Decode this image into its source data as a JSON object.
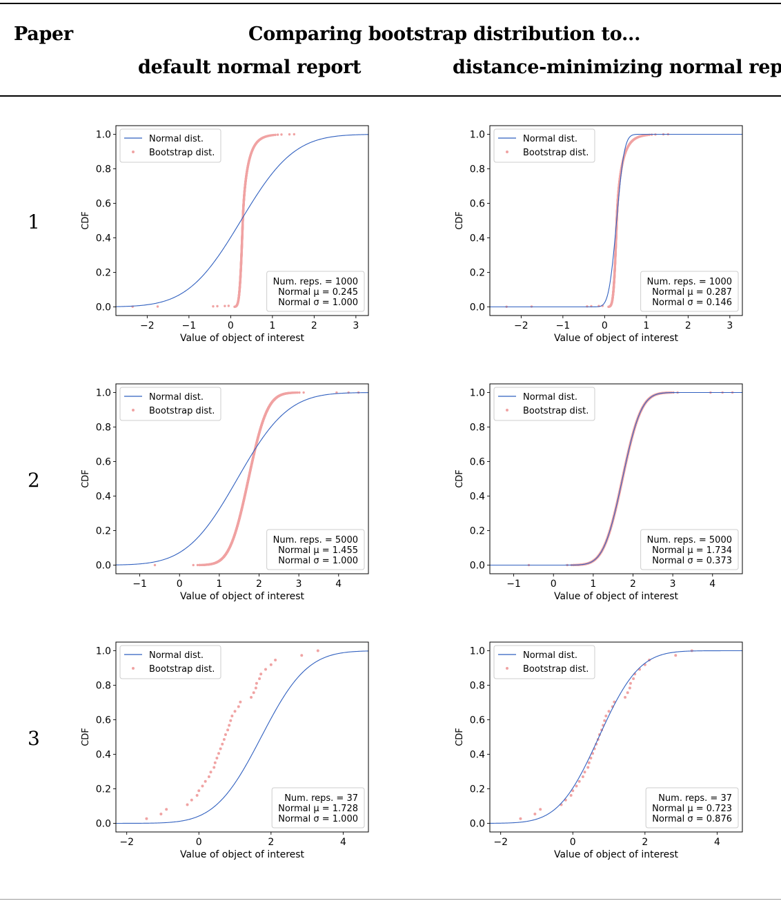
{
  "table": {
    "col_paper": "Paper",
    "col_compare": "Comparing bootstrap distribution to...",
    "col_default": "default normal report",
    "col_distmin": "distance-minimizing normal report",
    "rows": [
      "1",
      "2",
      "3"
    ]
  },
  "colors": {
    "normal": "#2f5fbf",
    "bootstrap": "#f0a3a3"
  },
  "chart_data": [
    {
      "id": "p1-default",
      "type": "line",
      "xlabel": "Value of object of interest",
      "ylabel": "CDF",
      "xlim": [
        -2.75,
        3.3
      ],
      "ylim": [
        -0.05,
        1.05
      ],
      "xticks": [
        -2,
        -1,
        0,
        1,
        2,
        3
      ],
      "yticks": [
        0.0,
        0.2,
        0.4,
        0.6,
        0.8,
        1.0
      ],
      "legend": [
        "Normal dist.",
        "Bootstrap dist."
      ],
      "legend_position": "upper-left",
      "stats": [
        "Num. reps. = 1000",
        "Normal μ = 0.245",
        "Normal σ = 1.000"
      ],
      "normal": {
        "mu": 0.245,
        "sigma": 1.0
      },
      "bootstrap": {
        "n": 1000,
        "center": 0.29,
        "spread": 0.06,
        "tail": "right",
        "tail_scale": 0.17,
        "outliers": [
          [
            -2.35,
            0.001
          ],
          [
            -1.75,
            0.002
          ],
          [
            -0.42,
            0.003
          ],
          [
            -0.32,
            0.004
          ],
          [
            -0.14,
            0.005
          ],
          [
            -0.05,
            0.006
          ],
          [
            1.52,
            1.0
          ]
        ]
      }
    },
    {
      "id": "p1-distmin",
      "type": "line",
      "xlabel": "Value of object of interest",
      "ylabel": "CDF",
      "xlim": [
        -2.75,
        3.3
      ],
      "ylim": [
        -0.05,
        1.05
      ],
      "xticks": [
        -2,
        -1,
        0,
        1,
        2,
        3
      ],
      "yticks": [
        0.0,
        0.2,
        0.4,
        0.6,
        0.8,
        1.0
      ],
      "legend": [
        "Normal dist.",
        "Bootstrap dist."
      ],
      "legend_position": "upper-left",
      "stats": [
        "Num. reps. = 1000",
        "Normal μ = 0.287",
        "Normal σ = 0.146"
      ],
      "normal": {
        "mu": 0.287,
        "sigma": 0.146
      },
      "bootstrap": {
        "n": 1000,
        "center": 0.29,
        "spread": 0.06,
        "tail": "right",
        "tail_scale": 0.17,
        "outliers": [
          [
            -2.35,
            0.001
          ],
          [
            -1.75,
            0.002
          ],
          [
            -0.42,
            0.003
          ],
          [
            -0.32,
            0.004
          ],
          [
            -0.14,
            0.005
          ],
          [
            -0.05,
            0.006
          ],
          [
            1.52,
            1.0
          ]
        ]
      }
    },
    {
      "id": "p2-default",
      "type": "line",
      "xlabel": "Value of object of interest",
      "ylabel": "CDF",
      "xlim": [
        -1.6,
        4.75
      ],
      "ylim": [
        -0.05,
        1.05
      ],
      "xticks": [
        -1,
        0,
        1,
        2,
        3,
        4
      ],
      "yticks": [
        0.0,
        0.2,
        0.4,
        0.6,
        0.8,
        1.0
      ],
      "legend": [
        "Normal dist.",
        "Bootstrap dist."
      ],
      "legend_position": "upper-left",
      "stats": [
        "Num. reps. = 5000",
        "Normal μ = 1.455",
        "Normal σ = 1.000"
      ],
      "normal": {
        "mu": 1.455,
        "sigma": 1.0
      },
      "bootstrap": {
        "n": 5000,
        "center": 1.734,
        "spread": 0.373,
        "tail": "none",
        "tail_scale": 0,
        "outliers": [
          [
            -0.62,
            0.0002
          ],
          [
            0.5,
            0.0004
          ],
          [
            0.62,
            0.0006
          ],
          [
            3.95,
            0.9995
          ],
          [
            4.25,
            0.9998
          ],
          [
            4.5,
            1.0
          ]
        ]
      }
    },
    {
      "id": "p2-distmin",
      "type": "line",
      "xlabel": "Value of object of interest",
      "ylabel": "CDF",
      "xlim": [
        -1.6,
        4.75
      ],
      "ylim": [
        -0.05,
        1.05
      ],
      "xticks": [
        -1,
        0,
        1,
        2,
        3,
        4
      ],
      "yticks": [
        0.0,
        0.2,
        0.4,
        0.6,
        0.8,
        1.0
      ],
      "legend": [
        "Normal dist.",
        "Bootstrap dist."
      ],
      "legend_position": "upper-left",
      "stats": [
        "Num. reps. = 5000",
        "Normal μ = 1.734",
        "Normal σ = 0.373"
      ],
      "normal": {
        "mu": 1.734,
        "sigma": 0.373
      },
      "bootstrap": {
        "n": 5000,
        "center": 1.734,
        "spread": 0.373,
        "tail": "none",
        "tail_scale": 0,
        "outliers": [
          [
            -0.62,
            0.0002
          ],
          [
            0.5,
            0.0004
          ],
          [
            0.62,
            0.0006
          ],
          [
            3.95,
            0.9995
          ],
          [
            4.25,
            0.9998
          ],
          [
            4.5,
            1.0
          ]
        ]
      }
    },
    {
      "id": "p3-default",
      "type": "line",
      "xlabel": "Value of object of interest",
      "ylabel": "CDF",
      "xlim": [
        -2.3,
        4.7
      ],
      "ylim": [
        -0.05,
        1.05
      ],
      "xticks": [
        -2,
        0,
        2,
        4
      ],
      "yticks": [
        0.0,
        0.2,
        0.4,
        0.6,
        0.8,
        1.0
      ],
      "legend": [
        "Normal dist.",
        "Bootstrap dist."
      ],
      "legend_position": "upper-left",
      "stats": [
        "Num. reps. = 37",
        "Normal μ = 1.728",
        "Normal σ = 1.000"
      ],
      "normal": {
        "mu": 1.728,
        "sigma": 1.0
      },
      "bootstrap_points": [
        [
          -1.45,
          0.027
        ],
        [
          -1.05,
          0.054
        ],
        [
          -0.9,
          0.081
        ],
        [
          -0.32,
          0.108
        ],
        [
          -0.2,
          0.135
        ],
        [
          -0.05,
          0.162
        ],
        [
          0.0,
          0.189
        ],
        [
          0.1,
          0.216
        ],
        [
          0.18,
          0.243
        ],
        [
          0.28,
          0.27
        ],
        [
          0.33,
          0.297
        ],
        [
          0.42,
          0.324
        ],
        [
          0.45,
          0.351
        ],
        [
          0.5,
          0.378
        ],
        [
          0.55,
          0.405
        ],
        [
          0.6,
          0.432
        ],
        [
          0.65,
          0.459
        ],
        [
          0.7,
          0.486
        ],
        [
          0.74,
          0.514
        ],
        [
          0.8,
          0.541
        ],
        [
          0.84,
          0.568
        ],
        [
          0.88,
          0.595
        ],
        [
          0.92,
          0.622
        ],
        [
          1.0,
          0.649
        ],
        [
          1.1,
          0.676
        ],
        [
          1.15,
          0.703
        ],
        [
          1.45,
          0.73
        ],
        [
          1.52,
          0.757
        ],
        [
          1.58,
          0.784
        ],
        [
          1.6,
          0.811
        ],
        [
          1.68,
          0.838
        ],
        [
          1.72,
          0.865
        ],
        [
          1.85,
          0.892
        ],
        [
          2.0,
          0.919
        ],
        [
          2.12,
          0.946
        ],
        [
          2.85,
          0.973
        ],
        [
          3.3,
          1.0
        ]
      ]
    },
    {
      "id": "p3-distmin",
      "type": "line",
      "xlabel": "Value of object of interest",
      "ylabel": "CDF",
      "xlim": [
        -2.3,
        4.7
      ],
      "ylim": [
        -0.05,
        1.05
      ],
      "xticks": [
        -2,
        0,
        2,
        4
      ],
      "yticks": [
        0.0,
        0.2,
        0.4,
        0.6,
        0.8,
        1.0
      ],
      "legend": [
        "Normal dist.",
        "Bootstrap dist."
      ],
      "legend_position": "upper-left",
      "stats": [
        "Num. reps. = 37",
        "Normal μ = 0.723",
        "Normal σ = 0.876"
      ],
      "normal": {
        "mu": 0.723,
        "sigma": 0.876
      },
      "bootstrap_points": [
        [
          -1.45,
          0.027
        ],
        [
          -1.05,
          0.054
        ],
        [
          -0.9,
          0.081
        ],
        [
          -0.32,
          0.108
        ],
        [
          -0.2,
          0.135
        ],
        [
          -0.05,
          0.162
        ],
        [
          0.0,
          0.189
        ],
        [
          0.1,
          0.216
        ],
        [
          0.18,
          0.243
        ],
        [
          0.28,
          0.27
        ],
        [
          0.33,
          0.297
        ],
        [
          0.42,
          0.324
        ],
        [
          0.45,
          0.351
        ],
        [
          0.5,
          0.378
        ],
        [
          0.55,
          0.405
        ],
        [
          0.6,
          0.432
        ],
        [
          0.65,
          0.459
        ],
        [
          0.7,
          0.486
        ],
        [
          0.74,
          0.514
        ],
        [
          0.8,
          0.541
        ],
        [
          0.84,
          0.568
        ],
        [
          0.88,
          0.595
        ],
        [
          0.92,
          0.622
        ],
        [
          1.0,
          0.649
        ],
        [
          1.1,
          0.676
        ],
        [
          1.15,
          0.703
        ],
        [
          1.45,
          0.73
        ],
        [
          1.52,
          0.757
        ],
        [
          1.58,
          0.784
        ],
        [
          1.6,
          0.811
        ],
        [
          1.68,
          0.838
        ],
        [
          1.72,
          0.865
        ],
        [
          1.85,
          0.892
        ],
        [
          2.0,
          0.919
        ],
        [
          2.12,
          0.946
        ],
        [
          2.85,
          0.973
        ],
        [
          3.3,
          1.0
        ]
      ]
    }
  ]
}
